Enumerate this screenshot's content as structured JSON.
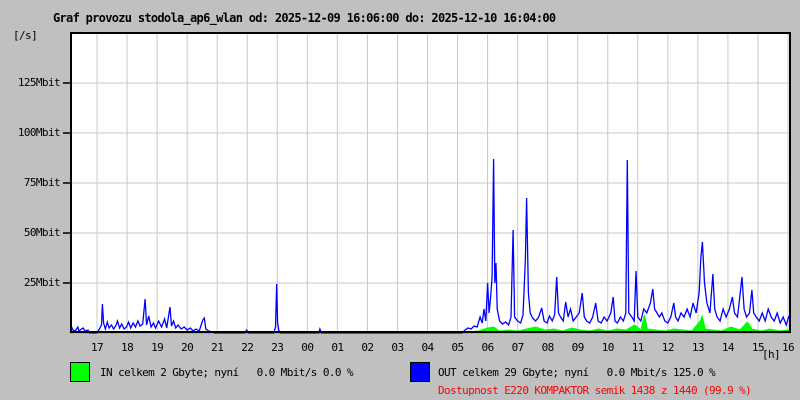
{
  "title": "Graf provozu stodola_ap6_wlan od: 2025-12-09 16:06:00 do: 2025-12-10 16:04:00",
  "unit_label": "[/s]",
  "hour_unit_label": "[h]",
  "colors": {
    "background": "#c0c0c0",
    "plot_background": "#ffffff",
    "grid": "#c9c9c9",
    "frame": "#000000",
    "in_series": "#00ff00",
    "out_series": "#0000ff",
    "availability_text": "#ff0000"
  },
  "legend": {
    "in_label": "IN celkem 2 Gbyte; nyní   0.0 Mbit/s 0.0 %",
    "out_label": "OUT celkem 29 Gbyte; nyní   0.0 Mbit/s 125.0 %",
    "availability": "Dostupnost E220 KOMPAKTOR semik 1438 z 1440 (99.9 %)"
  },
  "chart_data": {
    "type": "line",
    "title": "Graf provozu stodola_ap6_wlan od: 2025-12-09 16:06:00 do: 2025-12-10 16:04:00",
    "xlabel": "[h]",
    "ylabel": "[/s]",
    "x_axis_note": "x in hours elapsed since 2025-12-09 16:06:00; hour tick '17' is at 0.9 h",
    "xlim": [
      0,
      24
    ],
    "ylim": [
      0,
      150.5
    ],
    "grid": true,
    "x_first_tick_offset_hours": 0.9,
    "x_tick_labels": [
      "17",
      "18",
      "19",
      "20",
      "21",
      "22",
      "23",
      "00",
      "01",
      "02",
      "03",
      "04",
      "05",
      "06",
      "07",
      "08",
      "09",
      "10",
      "11",
      "12",
      "13",
      "14",
      "15",
      "16"
    ],
    "y_ticks": [
      {
        "value": 25,
        "label": "25Mbit"
      },
      {
        "value": 50,
        "label": "50Mbit"
      },
      {
        "value": 75,
        "label": "75Mbit"
      },
      {
        "value": 100,
        "label": "100Mbit"
      },
      {
        "value": 125,
        "label": "125Mbit"
      }
    ],
    "y_unit": "Mbit/s",
    "series": [
      {
        "name": "IN",
        "style": "area",
        "color": "#00ff00",
        "points": [
          [
            0,
            0.5
          ],
          [
            0.3,
            0.3
          ],
          [
            0.7,
            0
          ],
          [
            0.95,
            0
          ],
          [
            1.05,
            1
          ],
          [
            1.15,
            0.3
          ],
          [
            2,
            0.3
          ],
          [
            2.5,
            0.8
          ],
          [
            3.3,
            0.5
          ],
          [
            4.4,
            0.8
          ],
          [
            4.6,
            0.2
          ],
          [
            4.8,
            0
          ],
          [
            13.1,
            0
          ],
          [
            13.3,
            0.5
          ],
          [
            13.6,
            1
          ],
          [
            13.9,
            2.5
          ],
          [
            14.1,
            3
          ],
          [
            14.3,
            1
          ],
          [
            14.6,
            1.5
          ],
          [
            14.9,
            1
          ],
          [
            15.2,
            2
          ],
          [
            15.5,
            3
          ],
          [
            15.8,
            1.5
          ],
          [
            16.1,
            2
          ],
          [
            16.4,
            1
          ],
          [
            16.7,
            2.5
          ],
          [
            17,
            1.5
          ],
          [
            17.3,
            1
          ],
          [
            17.6,
            2
          ],
          [
            17.9,
            1
          ],
          [
            18.2,
            2
          ],
          [
            18.5,
            1.5
          ],
          [
            18.8,
            4
          ],
          [
            19,
            1.5
          ],
          [
            19.12,
            9
          ],
          [
            19.22,
            2
          ],
          [
            19.5,
            1.5
          ],
          [
            19.8,
            1
          ],
          [
            20.1,
            2
          ],
          [
            20.4,
            1.5
          ],
          [
            20.7,
            1
          ],
          [
            20.98,
            6
          ],
          [
            21.04,
            8.5
          ],
          [
            21.15,
            2
          ],
          [
            21.4,
            1.5
          ],
          [
            21.7,
            1
          ],
          [
            22,
            3
          ],
          [
            22.3,
            1.5
          ],
          [
            22.55,
            5.5
          ],
          [
            22.7,
            2
          ],
          [
            23,
            1
          ],
          [
            23.3,
            2
          ],
          [
            23.6,
            1
          ],
          [
            23.9,
            1.5
          ],
          [
            24,
            1
          ]
        ]
      },
      {
        "name": "OUT",
        "style": "line",
        "color": "#0000ff",
        "points": [
          [
            0,
            1.5
          ],
          [
            0.07,
            2.5
          ],
          [
            0.12,
            1
          ],
          [
            0.2,
            1.5
          ],
          [
            0.26,
            3
          ],
          [
            0.3,
            1
          ],
          [
            0.38,
            2
          ],
          [
            0.44,
            2.5
          ],
          [
            0.5,
            1
          ],
          [
            0.6,
            1.5
          ],
          [
            0.65,
            0
          ],
          [
            0.9,
            0
          ],
          [
            0.98,
            2
          ],
          [
            1.05,
            4
          ],
          [
            1.08,
            14.5
          ],
          [
            1.12,
            5
          ],
          [
            1.18,
            2
          ],
          [
            1.24,
            5.5
          ],
          [
            1.3,
            2.5
          ],
          [
            1.38,
            4
          ],
          [
            1.45,
            2
          ],
          [
            1.52,
            3.5
          ],
          [
            1.58,
            6
          ],
          [
            1.65,
            2.5
          ],
          [
            1.72,
            4.5
          ],
          [
            1.8,
            2
          ],
          [
            1.88,
            3
          ],
          [
            1.95,
            5.5
          ],
          [
            2.02,
            2.5
          ],
          [
            2.1,
            5
          ],
          [
            2.18,
            3
          ],
          [
            2.26,
            6
          ],
          [
            2.33,
            3.5
          ],
          [
            2.42,
            4.5
          ],
          [
            2.5,
            17
          ],
          [
            2.55,
            4
          ],
          [
            2.62,
            8.5
          ],
          [
            2.7,
            3
          ],
          [
            2.78,
            5
          ],
          [
            2.85,
            2.5
          ],
          [
            2.95,
            6
          ],
          [
            3.05,
            3
          ],
          [
            3.15,
            7
          ],
          [
            3.22,
            2.5
          ],
          [
            3.33,
            13
          ],
          [
            3.38,
            3.5
          ],
          [
            3.45,
            6
          ],
          [
            3.52,
            2.5
          ],
          [
            3.6,
            4
          ],
          [
            3.7,
            2
          ],
          [
            3.8,
            3
          ],
          [
            3.9,
            1.5
          ],
          [
            4,
            2.5
          ],
          [
            4.1,
            1
          ],
          [
            4.2,
            2
          ],
          [
            4.3,
            1
          ],
          [
            4.42,
            6.5
          ],
          [
            4.47,
            7.5
          ],
          [
            4.52,
            2
          ],
          [
            4.62,
            1
          ],
          [
            4.72,
            0.5
          ],
          [
            4.82,
            0
          ],
          [
            5.82,
            0
          ],
          [
            5.88,
            1.5
          ],
          [
            5.94,
            0
          ],
          [
            6.78,
            0
          ],
          [
            6.84,
            3
          ],
          [
            6.88,
            24.5
          ],
          [
            6.91,
            5
          ],
          [
            6.95,
            1.5
          ],
          [
            7,
            0
          ],
          [
            8.28,
            0
          ],
          [
            8.32,
            2
          ],
          [
            8.37,
            0
          ],
          [
            13.05,
            0
          ],
          [
            13.15,
            1.5
          ],
          [
            13.25,
            2.5
          ],
          [
            13.35,
            2
          ],
          [
            13.45,
            3.5
          ],
          [
            13.55,
            3
          ],
          [
            13.65,
            8
          ],
          [
            13.72,
            5
          ],
          [
            13.78,
            12
          ],
          [
            13.84,
            6
          ],
          [
            13.9,
            25
          ],
          [
            13.95,
            10
          ],
          [
            14,
            18
          ],
          [
            14.05,
            28
          ],
          [
            14.1,
            87
          ],
          [
            14.14,
            25
          ],
          [
            14.18,
            35
          ],
          [
            14.22,
            12
          ],
          [
            14.3,
            6
          ],
          [
            14.4,
            4.5
          ],
          [
            14.5,
            5.5
          ],
          [
            14.6,
            4
          ],
          [
            14.68,
            8
          ],
          [
            14.75,
            51.5
          ],
          [
            14.8,
            8
          ],
          [
            14.9,
            6
          ],
          [
            15,
            5
          ],
          [
            15.08,
            9
          ],
          [
            15.16,
            37
          ],
          [
            15.2,
            67.5
          ],
          [
            15.26,
            20
          ],
          [
            15.32,
            10
          ],
          [
            15.4,
            7.5
          ],
          [
            15.5,
            6
          ],
          [
            15.6,
            8
          ],
          [
            15.7,
            12.5
          ],
          [
            15.78,
            6
          ],
          [
            15.88,
            5
          ],
          [
            15.96,
            8.5
          ],
          [
            16.05,
            6
          ],
          [
            16.13,
            9
          ],
          [
            16.2,
            28
          ],
          [
            16.26,
            10
          ],
          [
            16.33,
            8
          ],
          [
            16.42,
            6
          ],
          [
            16.5,
            15.5
          ],
          [
            16.58,
            8
          ],
          [
            16.66,
            12
          ],
          [
            16.75,
            6
          ],
          [
            16.85,
            8
          ],
          [
            16.95,
            10
          ],
          [
            17.05,
            20
          ],
          [
            17.12,
            8
          ],
          [
            17.2,
            6
          ],
          [
            17.3,
            5
          ],
          [
            17.4,
            8
          ],
          [
            17.5,
            15
          ],
          [
            17.58,
            6
          ],
          [
            17.68,
            5
          ],
          [
            17.78,
            8
          ],
          [
            17.88,
            6
          ],
          [
            18,
            10
          ],
          [
            18.08,
            18
          ],
          [
            18.14,
            6
          ],
          [
            18.22,
            5
          ],
          [
            18.32,
            8
          ],
          [
            18.42,
            6
          ],
          [
            18.5,
            10
          ],
          [
            18.55,
            86.5
          ],
          [
            18.6,
            10
          ],
          [
            18.7,
            8
          ],
          [
            18.78,
            6
          ],
          [
            18.84,
            31
          ],
          [
            18.9,
            8
          ],
          [
            19,
            6
          ],
          [
            19.1,
            12
          ],
          [
            19.2,
            10
          ],
          [
            19.32,
            15
          ],
          [
            19.4,
            22
          ],
          [
            19.46,
            12
          ],
          [
            19.54,
            10
          ],
          [
            19.62,
            8
          ],
          [
            19.7,
            10
          ],
          [
            19.8,
            6
          ],
          [
            19.9,
            5
          ],
          [
            20,
            8
          ],
          [
            20.1,
            15
          ],
          [
            20.16,
            8
          ],
          [
            20.24,
            6
          ],
          [
            20.34,
            10
          ],
          [
            20.44,
            8
          ],
          [
            20.54,
            12
          ],
          [
            20.64,
            8
          ],
          [
            20.74,
            15
          ],
          [
            20.84,
            10
          ],
          [
            20.94,
            20
          ],
          [
            21,
            38
          ],
          [
            21.05,
            45.5
          ],
          [
            21.12,
            25
          ],
          [
            21.2,
            15
          ],
          [
            21.3,
            10
          ],
          [
            21.4,
            29.5
          ],
          [
            21.46,
            12
          ],
          [
            21.54,
            8
          ],
          [
            21.64,
            6
          ],
          [
            21.74,
            12
          ],
          [
            21.84,
            8
          ],
          [
            21.95,
            12
          ],
          [
            22.05,
            18
          ],
          [
            22.12,
            10
          ],
          [
            22.22,
            8
          ],
          [
            22.37,
            28
          ],
          [
            22.44,
            12
          ],
          [
            22.52,
            8
          ],
          [
            22.62,
            10
          ],
          [
            22.7,
            21.5
          ],
          [
            22.76,
            10
          ],
          [
            22.84,
            8
          ],
          [
            22.94,
            6
          ],
          [
            23.04,
            10
          ],
          [
            23.14,
            6
          ],
          [
            23.24,
            12
          ],
          [
            23.34,
            8
          ],
          [
            23.44,
            6
          ],
          [
            23.54,
            10
          ],
          [
            23.64,
            5
          ],
          [
            23.74,
            8
          ],
          [
            23.84,
            4
          ],
          [
            23.92,
            8
          ],
          [
            24,
            6
          ]
        ]
      }
    ]
  }
}
